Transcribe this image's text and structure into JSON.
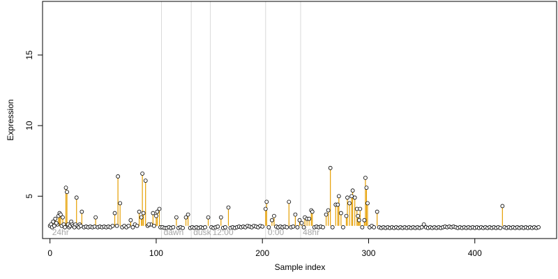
{
  "chart_data": {
    "type": "scatter",
    "title": "",
    "xlabel": "Sample index",
    "ylabel": "Expression",
    "xlim": [
      -7,
      477
    ],
    "ylim": [
      2.0,
      18.8
    ],
    "x_ticks": [
      0,
      100,
      200,
      300,
      400
    ],
    "y_ticks": [
      5,
      10,
      15
    ],
    "baseline": 2.9,
    "grid": false,
    "legend": "none",
    "colors": {
      "points_stroke": "#000000",
      "points_fill": "#ffffff",
      "spike_above": "#e69f00",
      "spike_below": "#6fa8dc",
      "region_lines": "#d9d9d9",
      "region_labels": "#a6a6a6"
    },
    "region_lines": [
      105,
      133,
      151,
      203,
      236
    ],
    "region_labels": [
      {
        "text": "24hr",
        "x": 2
      },
      {
        "text": "dawn",
        "x": 107
      },
      {
        "text": "dusk",
        "x": 135
      },
      {
        "text": "12:00",
        "x": 153
      },
      {
        "text": "0:00",
        "x": 205
      },
      {
        "text": "48hr",
        "x": 238
      }
    ],
    "series": [
      {
        "points": [
          [
            3,
            3.2
          ],
          [
            5,
            3.4
          ],
          [
            7,
            3.0
          ],
          [
            8,
            3.6
          ],
          [
            9,
            3.8
          ],
          [
            10,
            3.7
          ],
          [
            12,
            3.5
          ],
          [
            15,
            5.6
          ],
          [
            16,
            5.3
          ],
          [
            20,
            3.2
          ],
          [
            25,
            4.9
          ],
          [
            30,
            3.9
          ],
          [
            43,
            3.5
          ],
          [
            61,
            3.8
          ],
          [
            64,
            6.4
          ],
          [
            66,
            4.5
          ],
          [
            76,
            3.3
          ],
          [
            84,
            3.9
          ],
          [
            86,
            3.5
          ],
          [
            87,
            6.6
          ],
          [
            88,
            3.8
          ],
          [
            90,
            6.1
          ],
          [
            95,
            3.0
          ],
          [
            97,
            3.8
          ],
          [
            100,
            3.6
          ],
          [
            101,
            3.9
          ],
          [
            103,
            4.1
          ],
          [
            119,
            3.5
          ],
          [
            128,
            3.5
          ],
          [
            130,
            3.7
          ],
          [
            149,
            3.5
          ],
          [
            161,
            3.5
          ],
          [
            168,
            4.2
          ],
          [
            203,
            4.1
          ],
          [
            204,
            4.6
          ],
          [
            209,
            3.3
          ],
          [
            211,
            3.6
          ],
          [
            225,
            4.6
          ],
          [
            231,
            3.7
          ],
          [
            235,
            3.3
          ],
          [
            237,
            3.1
          ],
          [
            240,
            3.5
          ],
          [
            242,
            3.4
          ],
          [
            244,
            3.4
          ],
          [
            246,
            4.0
          ],
          [
            247,
            3.9
          ],
          [
            260,
            3.7
          ],
          [
            262,
            4.0
          ],
          [
            264,
            7.0
          ],
          [
            269,
            4.4
          ],
          [
            271,
            4.4
          ],
          [
            272,
            5.0
          ],
          [
            274,
            3.8
          ],
          [
            279,
            3.6
          ],
          [
            280,
            4.9
          ],
          [
            282,
            4.5
          ],
          [
            284,
            5.0
          ],
          [
            285,
            5.4
          ],
          [
            287,
            4.9
          ],
          [
            289,
            4.1
          ],
          [
            290,
            3.6
          ],
          [
            291,
            3.3
          ],
          [
            292,
            4.1
          ],
          [
            296,
            3.3
          ],
          [
            297,
            6.3
          ],
          [
            298,
            5.6
          ],
          [
            299,
            4.5
          ],
          [
            308,
            3.9
          ],
          [
            352,
            3.0
          ],
          [
            426,
            4.3
          ],
          [
            0,
            2.9
          ],
          [
            1,
            3.0
          ],
          [
            2,
            2.8
          ],
          [
            4,
            2.9
          ],
          [
            6,
            3.1
          ],
          [
            11,
            2.9
          ],
          [
            13,
            3.0
          ],
          [
            14,
            2.8
          ],
          [
            17,
            3.0
          ],
          [
            18,
            2.8
          ],
          [
            19,
            2.9
          ],
          [
            21,
            3.0
          ],
          [
            22,
            2.9
          ],
          [
            23,
            2.8
          ],
          [
            24,
            3.0
          ],
          [
            26,
            2.9
          ],
          [
            27,
            2.8
          ],
          [
            28,
            3.0
          ],
          [
            29,
            2.9
          ],
          [
            32,
            2.8
          ],
          [
            34,
            2.85
          ],
          [
            36,
            2.8
          ],
          [
            38,
            2.85
          ],
          [
            40,
            2.8
          ],
          [
            42,
            2.85
          ],
          [
            45,
            2.8
          ],
          [
            47,
            2.85
          ],
          [
            49,
            2.8
          ],
          [
            51,
            2.85
          ],
          [
            53,
            2.8
          ],
          [
            55,
            2.85
          ],
          [
            57,
            2.8
          ],
          [
            59,
            2.9
          ],
          [
            63,
            2.9
          ],
          [
            68,
            2.8
          ],
          [
            70,
            2.9
          ],
          [
            72,
            2.8
          ],
          [
            74,
            2.9
          ],
          [
            78,
            2.8
          ],
          [
            80,
            3.0
          ],
          [
            82,
            2.9
          ],
          [
            92,
            2.9
          ],
          [
            93,
            3.0
          ],
          [
            98,
            2.9
          ],
          [
            104,
            2.8
          ],
          [
            106,
            2.8
          ],
          [
            108,
            2.75
          ],
          [
            110,
            2.75
          ],
          [
            112,
            2.8
          ],
          [
            114,
            2.75
          ],
          [
            116,
            2.8
          ],
          [
            121,
            2.75
          ],
          [
            123,
            2.8
          ],
          [
            125,
            2.75
          ],
          [
            132,
            2.75
          ],
          [
            134,
            2.8
          ],
          [
            136,
            2.75
          ],
          [
            138,
            2.8
          ],
          [
            140,
            2.75
          ],
          [
            142,
            2.8
          ],
          [
            144,
            2.75
          ],
          [
            146,
            2.8
          ],
          [
            152,
            2.8
          ],
          [
            154,
            2.75
          ],
          [
            156,
            2.8
          ],
          [
            158,
            2.85
          ],
          [
            163,
            2.75
          ],
          [
            165,
            2.8
          ],
          [
            170,
            2.75
          ],
          [
            172,
            2.8
          ],
          [
            174,
            2.75
          ],
          [
            176,
            2.8
          ],
          [
            178,
            2.85
          ],
          [
            180,
            2.8
          ],
          [
            182,
            2.85
          ],
          [
            184,
            2.8
          ],
          [
            186,
            2.9
          ],
          [
            188,
            2.85
          ],
          [
            190,
            2.8
          ],
          [
            192,
            2.9
          ],
          [
            194,
            2.85
          ],
          [
            196,
            2.8
          ],
          [
            198,
            2.9
          ],
          [
            200,
            2.85
          ],
          [
            206,
            2.8
          ],
          [
            213,
            2.85
          ],
          [
            215,
            2.8
          ],
          [
            217,
            2.85
          ],
          [
            219,
            2.8
          ],
          [
            221,
            2.85
          ],
          [
            223,
            2.8
          ],
          [
            227,
            2.8
          ],
          [
            229,
            2.85
          ],
          [
            233,
            2.8
          ],
          [
            239,
            2.8
          ],
          [
            249,
            2.8
          ],
          [
            251,
            2.85
          ],
          [
            253,
            2.8
          ],
          [
            255,
            2.85
          ],
          [
            257,
            2.8
          ],
          [
            266,
            2.8
          ],
          [
            276,
            2.8
          ],
          [
            294,
            2.8
          ],
          [
            301,
            2.8
          ],
          [
            303,
            2.9
          ],
          [
            305,
            2.8
          ],
          [
            310,
            2.8
          ],
          [
            312,
            2.75
          ],
          [
            314,
            2.8
          ],
          [
            316,
            2.75
          ],
          [
            318,
            2.8
          ],
          [
            320,
            2.75
          ],
          [
            322,
            2.8
          ],
          [
            324,
            2.75
          ],
          [
            326,
            2.8
          ],
          [
            328,
            2.75
          ],
          [
            330,
            2.8
          ],
          [
            332,
            2.75
          ],
          [
            334,
            2.8
          ],
          [
            336,
            2.75
          ],
          [
            338,
            2.8
          ],
          [
            340,
            2.75
          ],
          [
            342,
            2.8
          ],
          [
            344,
            2.75
          ],
          [
            346,
            2.8
          ],
          [
            348,
            2.75
          ],
          [
            350,
            2.8
          ],
          [
            354,
            2.8
          ],
          [
            356,
            2.75
          ],
          [
            358,
            2.8
          ],
          [
            360,
            2.75
          ],
          [
            362,
            2.8
          ],
          [
            364,
            2.75
          ],
          [
            366,
            2.8
          ],
          [
            368,
            2.75
          ],
          [
            370,
            2.8
          ],
          [
            372,
            2.85
          ],
          [
            374,
            2.8
          ],
          [
            376,
            2.85
          ],
          [
            378,
            2.8
          ],
          [
            380,
            2.85
          ],
          [
            382,
            2.8
          ],
          [
            384,
            2.75
          ],
          [
            386,
            2.8
          ],
          [
            388,
            2.75
          ],
          [
            390,
            2.8
          ],
          [
            392,
            2.75
          ],
          [
            394,
            2.8
          ],
          [
            396,
            2.75
          ],
          [
            398,
            2.8
          ],
          [
            400,
            2.75
          ],
          [
            402,
            2.8
          ],
          [
            404,
            2.75
          ],
          [
            406,
            2.8
          ],
          [
            408,
            2.75
          ],
          [
            410,
            2.8
          ],
          [
            412,
            2.75
          ],
          [
            414,
            2.8
          ],
          [
            416,
            2.75
          ],
          [
            418,
            2.8
          ],
          [
            420,
            2.75
          ],
          [
            422,
            2.8
          ],
          [
            424,
            2.75
          ],
          [
            428,
            2.8
          ],
          [
            430,
            2.75
          ],
          [
            432,
            2.8
          ],
          [
            434,
            2.75
          ],
          [
            436,
            2.8
          ],
          [
            438,
            2.75
          ],
          [
            440,
            2.8
          ],
          [
            442,
            2.75
          ],
          [
            444,
            2.8
          ],
          [
            446,
            2.75
          ],
          [
            448,
            2.8
          ],
          [
            450,
            2.75
          ],
          [
            452,
            2.8
          ],
          [
            454,
            2.75
          ],
          [
            456,
            2.8
          ],
          [
            458,
            2.75
          ],
          [
            460,
            2.8
          ]
        ]
      }
    ]
  }
}
